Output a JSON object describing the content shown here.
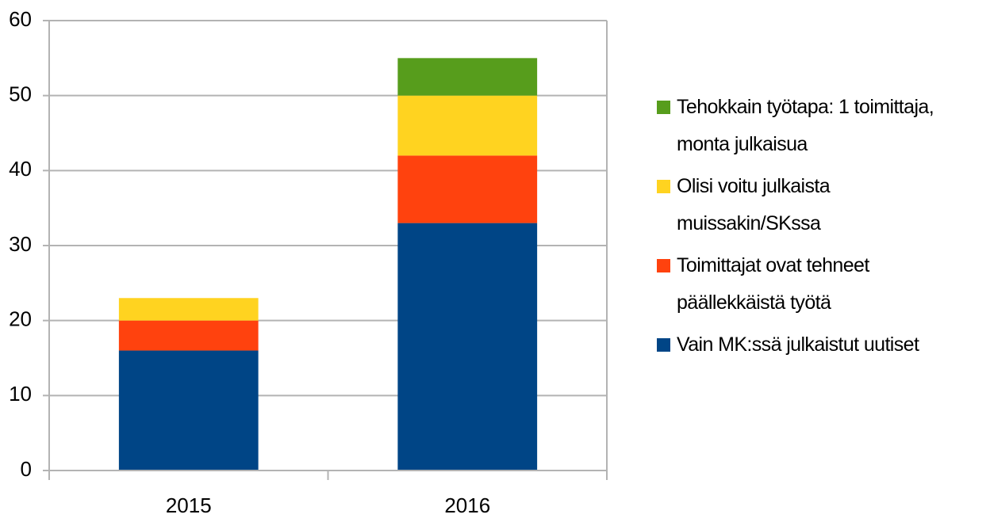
{
  "chart_data": {
    "type": "stacked_bar",
    "categories": [
      "2015",
      "2016"
    ],
    "series": [
      {
        "name": "Vain MK:ssä julkaistut uutiset",
        "color": "#004586",
        "values": [
          16,
          33
        ]
      },
      {
        "name": "Toimittajat ovat tehneet päällekkäistä työtä",
        "color": "#ff420e",
        "values": [
          4,
          9
        ]
      },
      {
        "name": "Olisi voitu julkaista muissakin/SKssa",
        "color": "#ffd320",
        "values": [
          3,
          8
        ]
      },
      {
        "name": "Tehokkain työtapa: 1 toimittaja, monta julkaisua",
        "color": "#579d1c",
        "values": [
          0,
          5
        ]
      }
    ],
    "ylim": [
      0,
      60
    ],
    "yticks": [
      0,
      10,
      20,
      30,
      40,
      50,
      60
    ],
    "grid": true,
    "legend": "right"
  }
}
